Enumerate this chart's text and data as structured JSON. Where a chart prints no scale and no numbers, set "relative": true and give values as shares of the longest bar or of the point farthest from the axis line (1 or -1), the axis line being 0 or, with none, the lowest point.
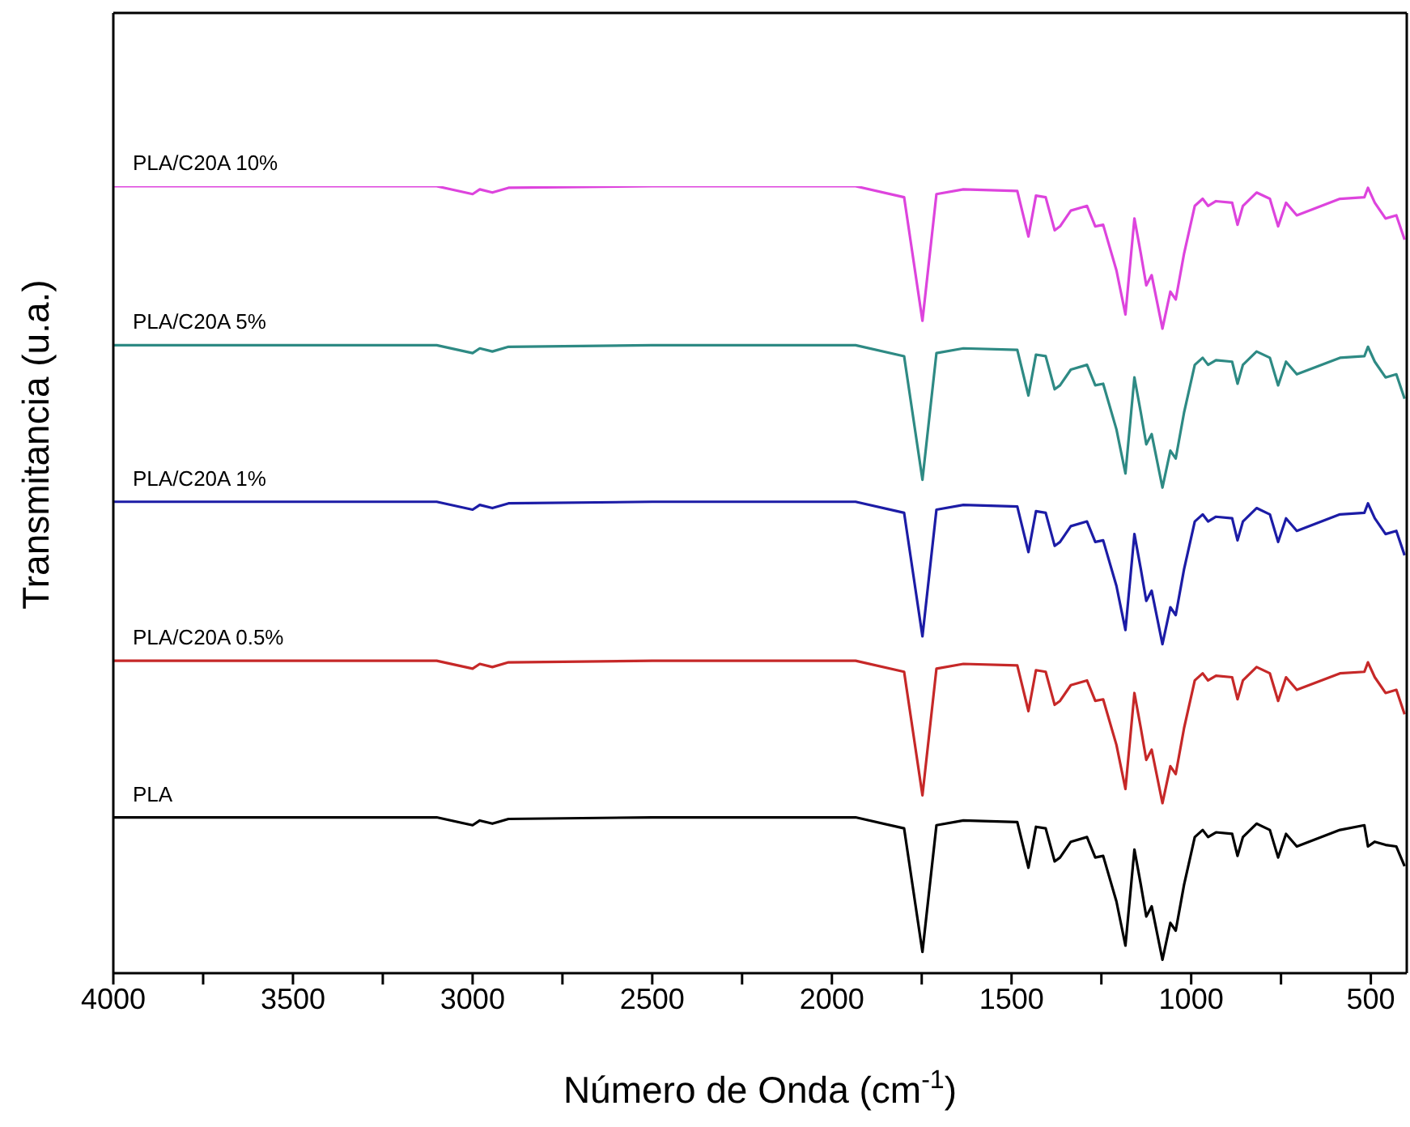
{
  "chart_data": {
    "type": "line",
    "relative": true,
    "xlabel": "Número de Onda (cm$^{-1}$)",
    "ylabel": "Transmitancia (u.a.)",
    "xlim": [
      4000,
      400
    ],
    "xticks": [
      4000,
      {
        "value": 3750,
        "label": null
      },
      3500,
      {
        "value": 3250,
        "label": null
      },
      3000,
      {
        "value": 2750,
        "label": null
      },
      2500,
      {
        "value": 2250,
        "label": null
      },
      2000,
      {
        "value": 1750,
        "label": null
      },
      1500,
      {
        "value": 1250,
        "label": null
      },
      1000,
      {
        "value": 750,
        "label": null
      },
      500
    ],
    "grid": false,
    "legend": false,
    "marker": "none",
    "line_style": "solid",
    "x": [
      4000,
      3500,
      3100,
      3000,
      2980,
      2945,
      2900,
      2500,
      1934,
      1799,
      1748,
      1709,
      1634,
      1484,
      1453,
      1432,
      1405,
      1380,
      1365,
      1335,
      1290,
      1267,
      1245,
      1208,
      1183,
      1158,
      1140,
      1125,
      1110,
      1080,
      1058,
      1043,
      1020,
      990,
      968,
      953,
      931,
      886,
      871,
      856,
      818,
      781,
      758,
      736,
      706,
      586,
      518,
      508,
      489,
      459,
      429,
      406
    ],
    "series": [
      {
        "name": "PLA/C20A 10%",
        "color": "#dd44dd",
        "values": [
          1,
          1,
          1,
          0.99,
          0.996,
          0.992,
          0.998,
          1,
          1,
          0.986,
          0.829,
          0.99,
          0.996,
          0.994,
          0.936,
          0.988,
          0.986,
          0.944,
          0.949,
          0.969,
          0.975,
          0.949,
          0.951,
          0.893,
          0.837,
          0.959,
          0.914,
          0.874,
          0.887,
          0.819,
          0.866,
          0.856,
          0.914,
          0.975,
          0.984,
          0.975,
          0.981,
          0.979,
          0.951,
          0.975,
          0.992,
          0.984,
          0.949,
          0.979,
          0.963,
          0.984,
          0.986,
          0.998,
          0.979,
          0.959,
          0.963,
          0.932
        ]
      },
      {
        "name": "PLA/C20A 5%",
        "color": "#2e8a84",
        "values": [
          0.798,
          0.798,
          0.798,
          0.788,
          0.794,
          0.79,
          0.796,
          0.798,
          0.798,
          0.784,
          0.627,
          0.788,
          0.794,
          0.792,
          0.734,
          0.786,
          0.784,
          0.742,
          0.747,
          0.767,
          0.773,
          0.747,
          0.749,
          0.691,
          0.635,
          0.757,
          0.712,
          0.672,
          0.685,
          0.617,
          0.664,
          0.654,
          0.712,
          0.773,
          0.782,
          0.773,
          0.779,
          0.777,
          0.749,
          0.773,
          0.79,
          0.782,
          0.747,
          0.777,
          0.761,
          0.782,
          0.784,
          0.796,
          0.777,
          0.757,
          0.761,
          0.73
        ]
      },
      {
        "name": "PLA/C20A 1%",
        "color": "#1c1ca6",
        "values": [
          0.599,
          0.599,
          0.599,
          0.589,
          0.595,
          0.591,
          0.597,
          0.599,
          0.599,
          0.585,
          0.428,
          0.589,
          0.595,
          0.593,
          0.535,
          0.587,
          0.585,
          0.543,
          0.548,
          0.568,
          0.574,
          0.548,
          0.55,
          0.492,
          0.436,
          0.558,
          0.513,
          0.473,
          0.486,
          0.418,
          0.465,
          0.455,
          0.513,
          0.574,
          0.583,
          0.574,
          0.58,
          0.578,
          0.55,
          0.574,
          0.591,
          0.583,
          0.548,
          0.578,
          0.562,
          0.583,
          0.585,
          0.597,
          0.578,
          0.558,
          0.562,
          0.531
        ]
      },
      {
        "name": "PLA/C20A 0.5%",
        "color": "#c62828",
        "values": [
          0.397,
          0.397,
          0.397,
          0.387,
          0.393,
          0.389,
          0.395,
          0.397,
          0.397,
          0.383,
          0.226,
          0.387,
          0.393,
          0.391,
          0.333,
          0.385,
          0.383,
          0.341,
          0.346,
          0.366,
          0.372,
          0.346,
          0.348,
          0.29,
          0.234,
          0.356,
          0.311,
          0.271,
          0.284,
          0.216,
          0.263,
          0.253,
          0.311,
          0.372,
          0.381,
          0.372,
          0.378,
          0.376,
          0.348,
          0.372,
          0.389,
          0.381,
          0.346,
          0.376,
          0.36,
          0.381,
          0.383,
          0.395,
          0.376,
          0.356,
          0.36,
          0.329
        ]
      },
      {
        "name": "PLA",
        "color": "#000000",
        "values": [
          0.198,
          0.198,
          0.198,
          0.188,
          0.194,
          0.19,
          0.196,
          0.198,
          0.198,
          0.184,
          0.027,
          0.188,
          0.194,
          0.192,
          0.134,
          0.186,
          0.184,
          0.142,
          0.147,
          0.167,
          0.173,
          0.147,
          0.149,
          0.091,
          0.035,
          0.157,
          0.112,
          0.072,
          0.085,
          0.017,
          0.064,
          0.054,
          0.112,
          0.173,
          0.182,
          0.173,
          0.179,
          0.177,
          0.149,
          0.173,
          0.19,
          0.182,
          0.147,
          0.177,
          0.161,
          0.182,
          0.188,
          0.161,
          0.167,
          0.163,
          0.161,
          0.136
        ]
      }
    ]
  }
}
